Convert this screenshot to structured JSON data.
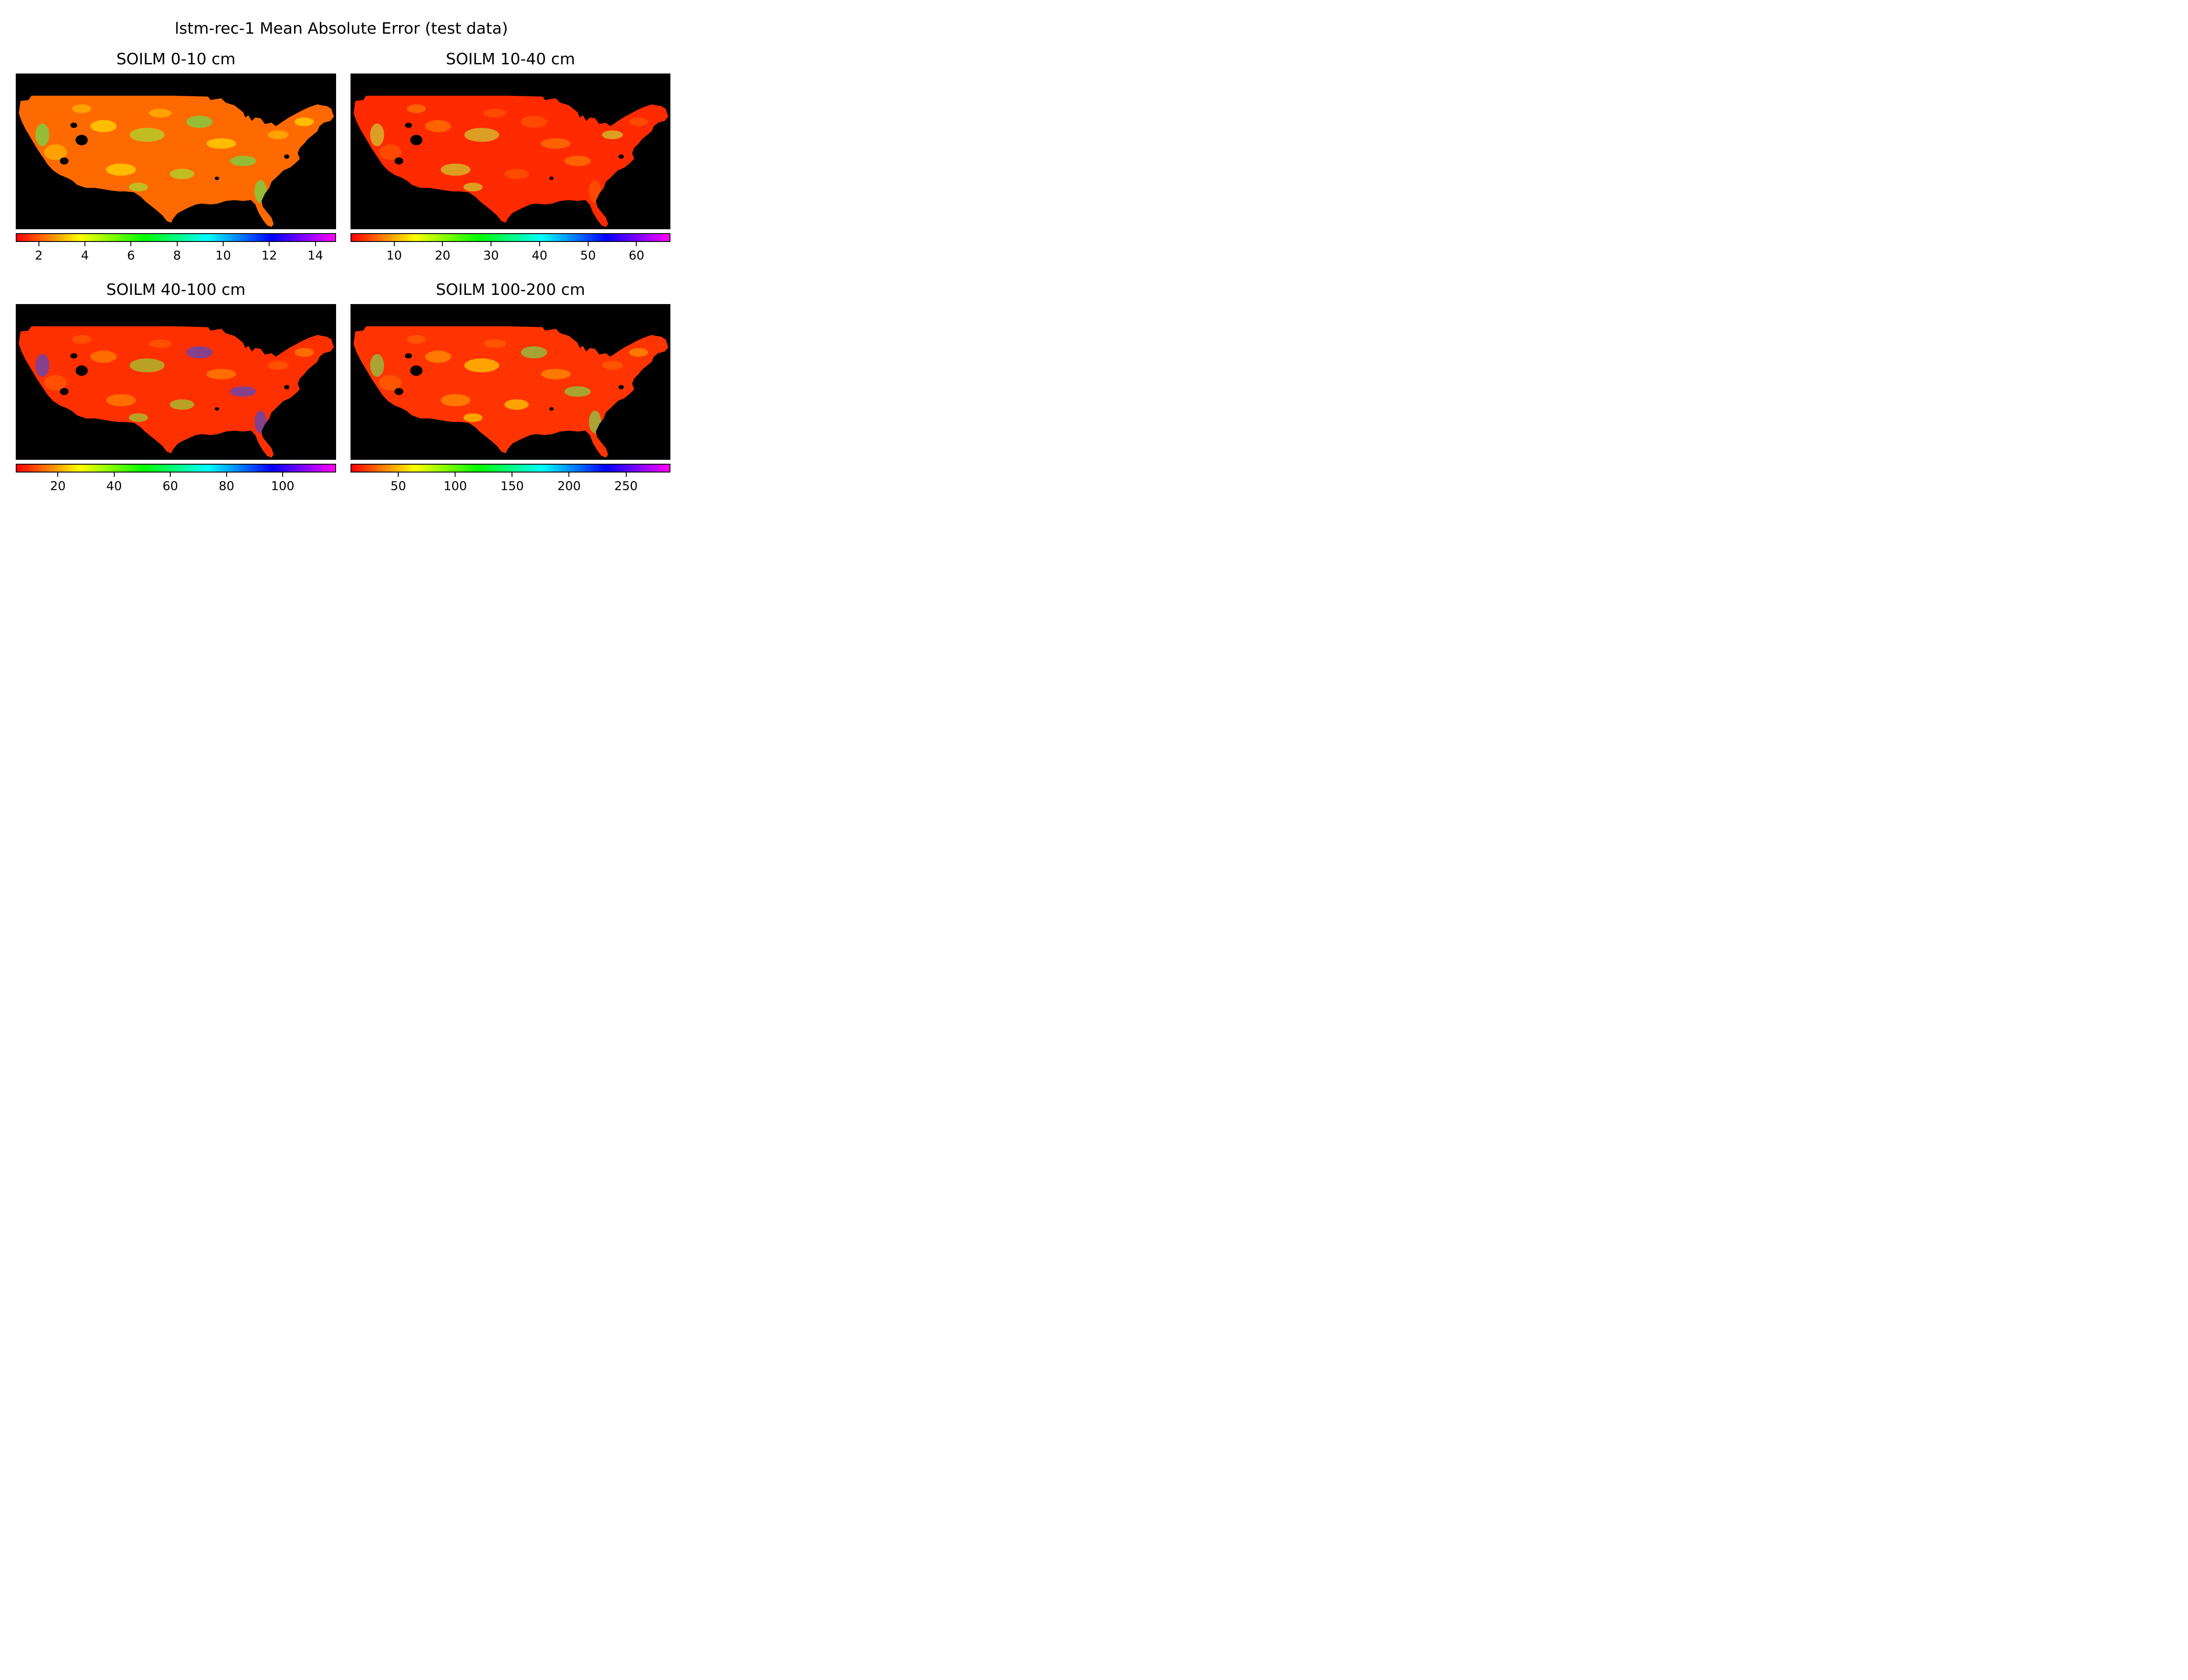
{
  "suptitle": "lstm-rec-1 Mean Absolute Error (test data)",
  "colormap": [
    "#ff0000",
    "#ff8000",
    "#ffff00",
    "#80ff00",
    "#00ff00",
    "#00ff80",
    "#00ffff",
    "#0080ff",
    "#0000ff",
    "#8000ff",
    "#ff00ff"
  ],
  "background_color": "#000000",
  "chart_data": [
    {
      "type": "heatmap",
      "title": "SOILM 0-10 cm",
      "colorbar_range": [
        1,
        14.9
      ],
      "colorbar_ticks": [
        2,
        4,
        6,
        8,
        10,
        12,
        14
      ],
      "dominant_color": "#ff6a00",
      "accent_colors": [
        "#ffd000",
        "#ffff00",
        "#90ff40",
        "#40ff60"
      ]
    },
    {
      "type": "heatmap",
      "title": "SOILM 10-40 cm",
      "colorbar_range": [
        1,
        67
      ],
      "colorbar_ticks": [
        10,
        20,
        30,
        40,
        50,
        60
      ],
      "dominant_color": "#ff2a00",
      "accent_colors": [
        "#ff6000",
        "#ff9000",
        "#c0ff40"
      ]
    },
    {
      "type": "heatmap",
      "title": "SOILM 40-100 cm",
      "colorbar_range": [
        5,
        119
      ],
      "colorbar_ticks": [
        20,
        40,
        60,
        80,
        100
      ],
      "dominant_color": "#ff3000",
      "accent_colors": [
        "#ff6a00",
        "#ffa000",
        "#80ff40",
        "#2050ff"
      ]
    },
    {
      "type": "heatmap",
      "title": "SOILM 100-200 cm",
      "colorbar_range": [
        8,
        289
      ],
      "colorbar_ticks": [
        50,
        100,
        150,
        200,
        250
      ],
      "dominant_color": "#ff3400",
      "accent_colors": [
        "#ff7000",
        "#ffb000",
        "#ffff00",
        "#60ff60"
      ]
    }
  ]
}
